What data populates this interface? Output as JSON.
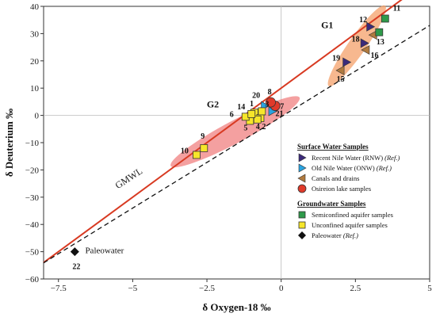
{
  "chart_data": {
    "type": "scatter",
    "xlabel": "δ Oxygen-18 ‰",
    "ylabel": "δ Deuterium ‰",
    "xlim": [
      -8,
      5
    ],
    "ylim": [
      -60,
      40
    ],
    "xticks": [
      -7.5,
      -5,
      -2.5,
      0,
      2.5,
      5
    ],
    "yticks": [
      -60,
      -50,
      -40,
      -30,
      -20,
      -10,
      0,
      10,
      20,
      30,
      40
    ],
    "xtick_labels": [
      "−7.5",
      "−5",
      "−2.5",
      "0",
      "2.5",
      "5"
    ],
    "ytick_labels": [
      "−60",
      "−50",
      "−40",
      "−30",
      "−20",
      "−10",
      "0",
      "10",
      "20",
      "30",
      "40"
    ],
    "grid": "zero lines only",
    "lines": [
      {
        "label": "GMWL",
        "style": "solid",
        "color": "#d83a22",
        "equation": "dD = 8*d18O + 10",
        "x_range": [
          -8,
          5
        ]
      },
      {
        "label": "",
        "style": "dashed",
        "color": "#111111",
        "equation": "dD = 6.7*d18O - 0.5",
        "x_range": [
          -8,
          5
        ]
      }
    ],
    "groups": [
      {
        "label": "G1",
        "center": [
          2.5,
          25
        ],
        "color": "#f4a06a"
      },
      {
        "label": "G2",
        "center": [
          -1.5,
          -5
        ],
        "color": "#f08080"
      }
    ],
    "series": [
      {
        "name": "Recent Nile Water (RNW) (Ref.)",
        "marker": "triangle-right",
        "color": "#3b2a7a",
        "points": [
          {
            "id": "12",
            "x": 3.0,
            "y": 32.5
          },
          {
            "id": "18",
            "x": 2.8,
            "y": 26.5
          },
          {
            "id": "19",
            "x": 2.2,
            "y": 19.5
          }
        ]
      },
      {
        "name": "Old Nile Water (ONW) (Ref.)",
        "marker": "triangle-right",
        "color": "#2aa3e0",
        "points": [
          {
            "id": "20",
            "x": -0.55,
            "y": 3.5
          },
          {
            "id": "21",
            "x": -0.3,
            "y": 1.5
          }
        ]
      },
      {
        "name": "Canals and drains",
        "marker": "triangle-left",
        "color": "#b07a3e",
        "points": [
          {
            "id": "13",
            "x": 3.1,
            "y": 29.5
          },
          {
            "id": "15",
            "x": 2.0,
            "y": 16.5
          },
          {
            "id": "16",
            "x": 2.85,
            "y": 24.0
          }
        ]
      },
      {
        "name": "Osireion lake samples",
        "marker": "circle",
        "color": "#e03a2a",
        "points": [
          {
            "id": "7",
            "x": -0.2,
            "y": 3.5
          },
          {
            "id": "8",
            "x": -0.35,
            "y": 4.8
          }
        ]
      },
      {
        "name": "Semiconfined aquifer samples",
        "marker": "square",
        "color": "#2e9a4a",
        "points": [
          {
            "id": "11",
            "x": 3.5,
            "y": 35.5
          },
          {
            "id": "",
            "x": 3.3,
            "y": 30.5
          }
        ]
      },
      {
        "name": "Unconfined aquifer samples",
        "marker": "square",
        "color": "#f6e62a",
        "points": [
          {
            "id": "9",
            "x": -2.6,
            "y": -12
          },
          {
            "id": "10",
            "x": -2.85,
            "y": -14.5
          },
          {
            "id": "1",
            "x": -0.9,
            "y": 1
          },
          {
            "id": "2",
            "x": -0.7,
            "y": -1
          },
          {
            "id": "3",
            "x": -0.65,
            "y": 1.5
          },
          {
            "id": "4",
            "x": -0.8,
            "y": -1.5
          },
          {
            "id": "5",
            "x": -1.05,
            "y": -2
          },
          {
            "id": "6",
            "x": -1.2,
            "y": -0.5
          },
          {
            "id": "14",
            "x": -1.0,
            "y": 0.5
          }
        ]
      },
      {
        "name": "Paleowater (Ref.)",
        "marker": "diamond",
        "color": "#111111",
        "points": [
          {
            "id": "22",
            "x": -6.95,
            "y": -50
          }
        ]
      }
    ],
    "annotations": [
      {
        "text": "Paleowater",
        "x": -6.6,
        "y": -50.5
      },
      {
        "text": "GMWL",
        "x": -5.5,
        "y": -27,
        "rotate": -33
      }
    ],
    "legend": {
      "placement": "bottom-right",
      "sections": [
        {
          "heading": "Surface Water Samples",
          "items": [
            {
              "label": "Recent Nile Water (RNW)",
              "ref": "(Ref.)",
              "marker": "triangle-right",
              "color": "#3b2a7a"
            },
            {
              "label": "Old Nile Water (ONW)",
              "ref": "(Ref.)",
              "marker": "triangle-right",
              "color": "#2aa3e0"
            },
            {
              "label": "Canals and drains",
              "ref": "",
              "marker": "triangle-left",
              "color": "#b07a3e"
            },
            {
              "label": "Osireion lake samples",
              "ref": "",
              "marker": "circle",
              "color": "#e03a2a"
            }
          ]
        },
        {
          "heading": "Groundwater Samples",
          "items": [
            {
              "label": "Semiconfined aquifer samples",
              "ref": "",
              "marker": "square",
              "color": "#2e9a4a"
            },
            {
              "label": "Unconfined aquifer samples",
              "ref": "",
              "marker": "square",
              "color": "#f6e62a"
            },
            {
              "label": "Paleowater",
              "ref": "(Ref.)",
              "marker": "diamond",
              "color": "#111111"
            }
          ]
        }
      ]
    }
  }
}
